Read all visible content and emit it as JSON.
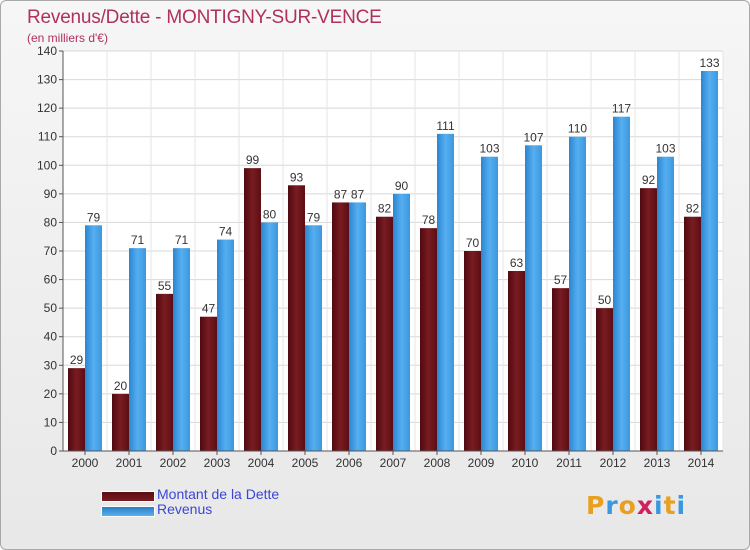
{
  "header": {
    "title": "Revenus/Dette - MONTIGNY-SUR-VENCE",
    "subtitle": "(en milliers d'€)"
  },
  "colors": {
    "title": "#b03060",
    "dette": "#7a1c22",
    "revenus": "#3a98e0",
    "legend_text": "#3a46d6"
  },
  "legend": {
    "items": [
      {
        "label": "Montant de la Dette",
        "color": "#7a1c22"
      },
      {
        "label": "Revenus",
        "color": "#3a98e0"
      }
    ]
  },
  "logo": {
    "text": "Proxiti",
    "letter_colors": [
      "#e8a020",
      "#3a98e0",
      "#e8a020",
      "#d02060",
      "#3a98e0",
      "#e8a020",
      "#3a98e0"
    ]
  },
  "chart_data": {
    "type": "bar",
    "title": "Revenus/Dette - MONTIGNY-SUR-VENCE",
    "subtitle": "(en milliers d'€)",
    "categories": [
      "2000",
      "2001",
      "2002",
      "2003",
      "2004",
      "2005",
      "2006",
      "2007",
      "2008",
      "2009",
      "2010",
      "2011",
      "2012",
      "2013",
      "2014"
    ],
    "series": [
      {
        "name": "Montant de la Dette",
        "values": [
          29,
          20,
          55,
          47,
          99,
          93,
          87,
          82,
          78,
          70,
          63,
          57,
          50,
          92,
          82
        ]
      },
      {
        "name": "Revenus",
        "values": [
          79,
          71,
          71,
          74,
          80,
          79,
          87,
          90,
          111,
          103,
          107,
          110,
          117,
          103,
          133
        ]
      }
    ],
    "ylim": [
      0,
      140
    ],
    "yticks": [
      0,
      10,
      20,
      30,
      40,
      50,
      60,
      70,
      80,
      90,
      100,
      110,
      120,
      130,
      140
    ],
    "grid": true,
    "data_labels": true,
    "legend_position": "bottom-left"
  }
}
